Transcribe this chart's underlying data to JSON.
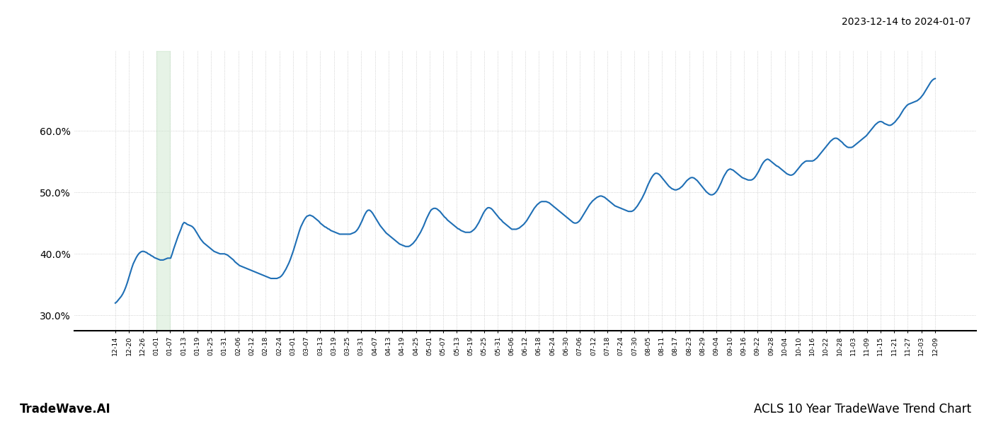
{
  "title_top_right": "2023-12-14 to 2024-01-07",
  "title_bottom_left": "TradeWave.AI",
  "title_bottom_right": "ACLS 10 Year TradeWave Trend Chart",
  "line_color": "#1f6fb5",
  "line_width": 1.5,
  "highlight_color": "#c8e6c9",
  "highlight_alpha": 0.45,
  "background_color": "#ffffff",
  "grid_color": "#aaaaaa",
  "ylim": [
    0.275,
    0.73
  ],
  "yticks": [
    0.3,
    0.4,
    0.5,
    0.6
  ],
  "ytick_labels": [
    "30.0%",
    "40.0%",
    "50.0%",
    "60.0%"
  ],
  "x_labels": [
    "12-14",
    "12-20",
    "12-26",
    "01-01",
    "01-07",
    "01-13",
    "01-19",
    "01-25",
    "01-31",
    "02-06",
    "02-12",
    "02-18",
    "02-24",
    "03-01",
    "03-07",
    "03-13",
    "03-19",
    "03-25",
    "03-31",
    "04-07",
    "04-13",
    "04-19",
    "04-25",
    "05-01",
    "05-07",
    "05-13",
    "05-19",
    "05-25",
    "05-31",
    "06-06",
    "06-12",
    "06-18",
    "06-24",
    "06-30",
    "07-06",
    "07-12",
    "07-18",
    "07-24",
    "07-30",
    "08-05",
    "08-11",
    "08-17",
    "08-23",
    "08-29",
    "09-04",
    "09-10",
    "09-16",
    "09-22",
    "09-28",
    "10-04",
    "10-10",
    "10-16",
    "10-22",
    "10-28",
    "11-03",
    "11-09",
    "11-15",
    "11-21",
    "11-27",
    "12-03",
    "12-09"
  ],
  "highlight_label_start": "01-01",
  "highlight_label_end": "01-07",
  "values": [
    0.32,
    0.322,
    0.325,
    0.328,
    0.331,
    0.335,
    0.34,
    0.346,
    0.353,
    0.361,
    0.369,
    0.377,
    0.384,
    0.389,
    0.394,
    0.398,
    0.401,
    0.403,
    0.404,
    0.404,
    0.403,
    0.402,
    0.4,
    0.399,
    0.397,
    0.396,
    0.394,
    0.393,
    0.392,
    0.391,
    0.39,
    0.39,
    0.39,
    0.391,
    0.392,
    0.393,
    0.393,
    0.393,
    0.4,
    0.408,
    0.415,
    0.422,
    0.429,
    0.435,
    0.441,
    0.448,
    0.451,
    0.45,
    0.448,
    0.447,
    0.446,
    0.445,
    0.443,
    0.44,
    0.436,
    0.432,
    0.428,
    0.424,
    0.421,
    0.418,
    0.416,
    0.414,
    0.412,
    0.41,
    0.408,
    0.406,
    0.404,
    0.403,
    0.402,
    0.401,
    0.4,
    0.4,
    0.4,
    0.4,
    0.399,
    0.398,
    0.396,
    0.394,
    0.392,
    0.39,
    0.387,
    0.385,
    0.383,
    0.381,
    0.38,
    0.379,
    0.378,
    0.377,
    0.376,
    0.375,
    0.374,
    0.373,
    0.372,
    0.371,
    0.37,
    0.369,
    0.368,
    0.367,
    0.366,
    0.365,
    0.364,
    0.363,
    0.362,
    0.361,
    0.36,
    0.36,
    0.36,
    0.36,
    0.36,
    0.361,
    0.362,
    0.364,
    0.367,
    0.371,
    0.375,
    0.38,
    0.385,
    0.391,
    0.398,
    0.405,
    0.413,
    0.421,
    0.429,
    0.437,
    0.444,
    0.449,
    0.454,
    0.458,
    0.461,
    0.462,
    0.463,
    0.462,
    0.461,
    0.459,
    0.457,
    0.455,
    0.453,
    0.45,
    0.448,
    0.446,
    0.444,
    0.443,
    0.441,
    0.44,
    0.438,
    0.437,
    0.436,
    0.435,
    0.434,
    0.433,
    0.432,
    0.432,
    0.432,
    0.432,
    0.432,
    0.432,
    0.432,
    0.432,
    0.433,
    0.434,
    0.435,
    0.437,
    0.44,
    0.444,
    0.449,
    0.454,
    0.46,
    0.465,
    0.469,
    0.471,
    0.471,
    0.469,
    0.466,
    0.462,
    0.458,
    0.454,
    0.45,
    0.446,
    0.443,
    0.44,
    0.437,
    0.434,
    0.432,
    0.43,
    0.428,
    0.426,
    0.424,
    0.422,
    0.42,
    0.418,
    0.416,
    0.415,
    0.414,
    0.413,
    0.412,
    0.412,
    0.412,
    0.413,
    0.415,
    0.417,
    0.42,
    0.423,
    0.427,
    0.431,
    0.435,
    0.44,
    0.445,
    0.451,
    0.457,
    0.462,
    0.467,
    0.471,
    0.473,
    0.474,
    0.474,
    0.473,
    0.471,
    0.469,
    0.466,
    0.463,
    0.46,
    0.458,
    0.455,
    0.453,
    0.451,
    0.449,
    0.447,
    0.445,
    0.443,
    0.441,
    0.44,
    0.438,
    0.437,
    0.436,
    0.435,
    0.435,
    0.435,
    0.435,
    0.436,
    0.438,
    0.44,
    0.443,
    0.447,
    0.451,
    0.456,
    0.461,
    0.466,
    0.47,
    0.473,
    0.475,
    0.475,
    0.474,
    0.472,
    0.469,
    0.466,
    0.463,
    0.46,
    0.457,
    0.455,
    0.452,
    0.45,
    0.448,
    0.446,
    0.444,
    0.442,
    0.44,
    0.44,
    0.44,
    0.44,
    0.441,
    0.442,
    0.444,
    0.446,
    0.448,
    0.451,
    0.454,
    0.458,
    0.462,
    0.466,
    0.47,
    0.474,
    0.477,
    0.48,
    0.482,
    0.484,
    0.485,
    0.485,
    0.485,
    0.485,
    0.484,
    0.483,
    0.481,
    0.479,
    0.477,
    0.475,
    0.473,
    0.471,
    0.469,
    0.467,
    0.465,
    0.463,
    0.461,
    0.459,
    0.457,
    0.455,
    0.453,
    0.451,
    0.45,
    0.45,
    0.451,
    0.453,
    0.456,
    0.46,
    0.464,
    0.468,
    0.472,
    0.476,
    0.48,
    0.483,
    0.486,
    0.488,
    0.49,
    0.492,
    0.493,
    0.494,
    0.494,
    0.493,
    0.492,
    0.49,
    0.488,
    0.486,
    0.484,
    0.482,
    0.48,
    0.478,
    0.477,
    0.476,
    0.475,
    0.474,
    0.473,
    0.472,
    0.471,
    0.47,
    0.469,
    0.469,
    0.469,
    0.47,
    0.472,
    0.475,
    0.478,
    0.482,
    0.486,
    0.49,
    0.495,
    0.5,
    0.506,
    0.512,
    0.517,
    0.522,
    0.526,
    0.529,
    0.531,
    0.531,
    0.53,
    0.528,
    0.525,
    0.522,
    0.519,
    0.516,
    0.513,
    0.51,
    0.508,
    0.506,
    0.505,
    0.504,
    0.504,
    0.505,
    0.506,
    0.508,
    0.51,
    0.513,
    0.516,
    0.519,
    0.521,
    0.523,
    0.524,
    0.524,
    0.523,
    0.521,
    0.519,
    0.516,
    0.513,
    0.51,
    0.507,
    0.504,
    0.501,
    0.499,
    0.497,
    0.496,
    0.496,
    0.497,
    0.499,
    0.502,
    0.506,
    0.511,
    0.516,
    0.522,
    0.527,
    0.531,
    0.535,
    0.537,
    0.538,
    0.537,
    0.536,
    0.534,
    0.532,
    0.53,
    0.528,
    0.526,
    0.524,
    0.523,
    0.522,
    0.521,
    0.52,
    0.52,
    0.52,
    0.521,
    0.523,
    0.526,
    0.53,
    0.534,
    0.539,
    0.544,
    0.548,
    0.551,
    0.553,
    0.554,
    0.553,
    0.551,
    0.549,
    0.547,
    0.545,
    0.543,
    0.542,
    0.54,
    0.538,
    0.536,
    0.534,
    0.532,
    0.53,
    0.529,
    0.528,
    0.528,
    0.529,
    0.531,
    0.534,
    0.537,
    0.54,
    0.543,
    0.546,
    0.548,
    0.55,
    0.551,
    0.551,
    0.551,
    0.551,
    0.551,
    0.552,
    0.554,
    0.556,
    0.559,
    0.562,
    0.565,
    0.568,
    0.571,
    0.574,
    0.577,
    0.58,
    0.583,
    0.585,
    0.587,
    0.588,
    0.588,
    0.587,
    0.585,
    0.583,
    0.581,
    0.578,
    0.576,
    0.574,
    0.573,
    0.573,
    0.573,
    0.574,
    0.576,
    0.578,
    0.58,
    0.582,
    0.584,
    0.586,
    0.588,
    0.59,
    0.592,
    0.595,
    0.598,
    0.601,
    0.604,
    0.607,
    0.61,
    0.612,
    0.614,
    0.615,
    0.615,
    0.614,
    0.612,
    0.611,
    0.61,
    0.609,
    0.609,
    0.61,
    0.612,
    0.614,
    0.617,
    0.62,
    0.623,
    0.627,
    0.631,
    0.635,
    0.638,
    0.641,
    0.643,
    0.644,
    0.645,
    0.646,
    0.647,
    0.648,
    0.649,
    0.651,
    0.653,
    0.656,
    0.659,
    0.663,
    0.667,
    0.671,
    0.675,
    0.679,
    0.682,
    0.684,
    0.685
  ]
}
